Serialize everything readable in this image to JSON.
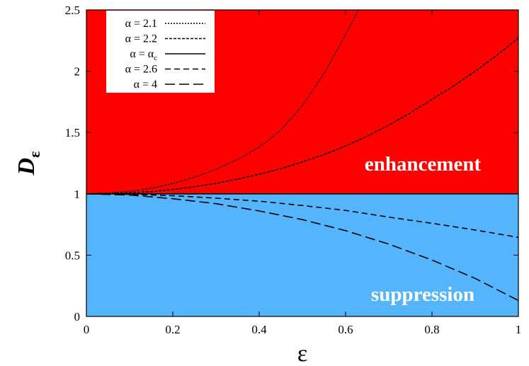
{
  "chart_data": {
    "type": "line",
    "xlabel": "ε",
    "ylabel": {
      "main": "D",
      "sub": "ε"
    },
    "xlim": [
      0,
      1
    ],
    "ylim": [
      0,
      2.5
    ],
    "x_ticks": [
      "0",
      "0.2",
      "0.4",
      "0.6",
      "0.8",
      "1"
    ],
    "y_ticks": [
      "0",
      "0.5",
      "1",
      "1.5",
      "2",
      "2.5"
    ],
    "grid": false,
    "legend_position": "top-left",
    "regions": [
      {
        "label": "enhancement",
        "y_range": [
          1,
          2.5
        ],
        "color": "#fd0000"
      },
      {
        "label": "suppression",
        "y_range": [
          0,
          1
        ],
        "color": "#54b5fc"
      }
    ],
    "series": [
      {
        "name": "α = 2.1",
        "dash": "dotted",
        "x": [
          0,
          0.05,
          0.1,
          0.15,
          0.2,
          0.25,
          0.3,
          0.35,
          0.4,
          0.45,
          0.5,
          0.55,
          0.6,
          0.63
        ],
        "y": [
          1.0,
          1.005,
          1.02,
          1.045,
          1.085,
          1.135,
          1.2,
          1.28,
          1.38,
          1.52,
          1.72,
          1.98,
          2.3,
          2.5
        ]
      },
      {
        "name": "α = 2.2",
        "dash": "short-dash",
        "x": [
          0,
          0.05,
          0.1,
          0.15,
          0.2,
          0.25,
          0.3,
          0.35,
          0.4,
          0.45,
          0.5,
          0.55,
          0.6,
          0.65,
          0.7,
          0.75,
          0.8,
          0.85,
          0.9,
          0.95,
          1.0
        ],
        "y": [
          1.0,
          1.002,
          1.008,
          1.018,
          1.035,
          1.058,
          1.085,
          1.12,
          1.16,
          1.205,
          1.26,
          1.32,
          1.39,
          1.47,
          1.56,
          1.66,
          1.77,
          1.88,
          2.0,
          2.13,
          2.27
        ]
      },
      {
        "name": "α = α_c",
        "name_display": {
          "main": "α = α",
          "sub": "c"
        },
        "dash": "solid",
        "x": [
          0,
          1
        ],
        "y": [
          1,
          1
        ]
      },
      {
        "name": "α = 2.6",
        "dash": "dashed",
        "x": [
          0,
          0.1,
          0.2,
          0.3,
          0.4,
          0.5,
          0.6,
          0.7,
          0.8,
          0.9,
          1.0
        ],
        "y": [
          1.0,
          0.996,
          0.985,
          0.965,
          0.94,
          0.905,
          0.865,
          0.81,
          0.76,
          0.705,
          0.645
        ]
      },
      {
        "name": "α = 4",
        "dash": "long-dash",
        "x": [
          0,
          0.1,
          0.2,
          0.3,
          0.4,
          0.5,
          0.6,
          0.7,
          0.8,
          0.9,
          1.0
        ],
        "y": [
          1.0,
          0.99,
          0.96,
          0.92,
          0.86,
          0.79,
          0.7,
          0.59,
          0.46,
          0.31,
          0.13
        ]
      }
    ]
  }
}
